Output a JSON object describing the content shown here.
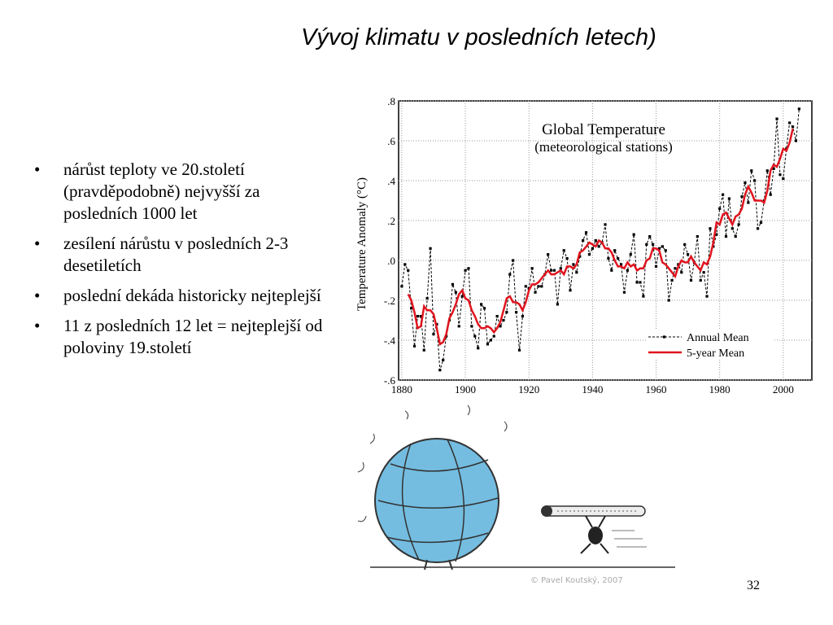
{
  "slide": {
    "title": "Vývoj klimatu v posledních letech)",
    "bullets": [
      "nárůst teploty ve 20.století (pravděpodobně) nejvyšší za posledních 1000 let",
      "zesílení nárůstu v posledních 2-3 desetiletích",
      "poslední dekáda historicky nejteplejší",
      "11 z posledních 12 let  = nejteplejší od poloviny 19.století"
    ],
    "credit": "© Pavel Koutský, 2007",
    "page_number": "32"
  },
  "chart_data": {
    "type": "line",
    "title": "Global Temperature",
    "subtitle": "(meteorological stations)",
    "y_label": "Temperature Anomaly (°C)",
    "xlim": [
      1879,
      2009
    ],
    "xticks": [
      1880,
      1900,
      1920,
      1940,
      1960,
      1980,
      2000
    ],
    "ylim": [
      -0.6,
      0.8
    ],
    "yticks": [
      {
        "value": 0.8,
        "label": ".8"
      },
      {
        "value": 0.6,
        "label": ".6"
      },
      {
        "value": 0.4,
        "label": ".4"
      },
      {
        "value": 0.2,
        "label": ".2"
      },
      {
        "value": 0,
        "label": ".0"
      },
      {
        "value": -0.2,
        "label": "-.2"
      },
      {
        "value": -0.4,
        "label": "-.4"
      },
      {
        "value": -0.6,
        "label": "-.6"
      }
    ],
    "grid": true,
    "legend": "lower right",
    "x": [
      1880,
      1881,
      1882,
      1883,
      1884,
      1885,
      1886,
      1887,
      1888,
      1889,
      1890,
      1891,
      1892,
      1893,
      1894,
      1895,
      1896,
      1897,
      1898,
      1899,
      1900,
      1901,
      1902,
      1903,
      1904,
      1905,
      1906,
      1907,
      1908,
      1909,
      1910,
      1911,
      1912,
      1913,
      1914,
      1915,
      1916,
      1917,
      1918,
      1919,
      1920,
      1921,
      1922,
      1923,
      1924,
      1925,
      1926,
      1927,
      1928,
      1929,
      1930,
      1931,
      1932,
      1933,
      1934,
      1935,
      1936,
      1937,
      1938,
      1939,
      1940,
      1941,
      1942,
      1943,
      1944,
      1945,
      1946,
      1947,
      1948,
      1949,
      1950,
      1951,
      1952,
      1953,
      1954,
      1955,
      1956,
      1957,
      1958,
      1959,
      1960,
      1961,
      1962,
      1963,
      1964,
      1965,
      1966,
      1967,
      1968,
      1969,
      1970,
      1971,
      1972,
      1973,
      1974,
      1975,
      1976,
      1977,
      1978,
      1979,
      1980,
      1981,
      1982,
      1983,
      1984,
      1985,
      1986,
      1987,
      1988,
      1989,
      1990,
      1991,
      1992,
      1993,
      1994,
      1995,
      1996,
      1997,
      1998,
      1999,
      2000,
      2001,
      2002,
      2003,
      2004,
      2005
    ],
    "series": [
      {
        "name": "Annual Mean",
        "color": "#000000",
        "style": "dashed",
        "marker": "square",
        "values": [
          -0.13,
          -0.02,
          -0.05,
          -0.24,
          -0.43,
          -0.28,
          -0.28,
          -0.45,
          -0.19,
          0.06,
          -0.37,
          -0.32,
          -0.55,
          -0.5,
          -0.38,
          -0.3,
          -0.12,
          -0.16,
          -0.33,
          -0.18,
          -0.05,
          -0.04,
          -0.33,
          -0.38,
          -0.44,
          -0.22,
          -0.24,
          -0.42,
          -0.4,
          -0.38,
          -0.28,
          -0.33,
          -0.3,
          -0.26,
          -0.07,
          0,
          -0.26,
          -0.45,
          -0.28,
          -0.13,
          -0.14,
          -0.04,
          -0.16,
          -0.13,
          -0.13,
          -0.07,
          0.03,
          -0.05,
          -0.05,
          -0.22,
          -0.04,
          0.05,
          0.01,
          -0.15,
          -0.02,
          -0.06,
          0.02,
          0.1,
          0.14,
          0.03,
          0.06,
          0.1,
          0.07,
          0.09,
          0.18,
          0.01,
          -0.05,
          0.05,
          0.01,
          -0.02,
          -0.16,
          -0.05,
          0.03,
          0.13,
          -0.11,
          -0.11,
          -0.18,
          0.08,
          0.12,
          0.08,
          -0.03,
          0.06,
          0.07,
          0.05,
          -0.2,
          -0.1,
          -0.04,
          -0.02,
          -0.06,
          0.08,
          0.03,
          -0.1,
          -0.01,
          0.12,
          -0.1,
          -0.06,
          -0.18,
          0.16,
          0.07,
          0.13,
          0.26,
          0.33,
          0.12,
          0.31,
          0.16,
          0.12,
          0.18,
          0.32,
          0.39,
          0.29,
          0.45,
          0.4,
          0.16,
          0.19,
          0.3,
          0.45,
          0.33,
          0.46,
          0.71,
          0.43,
          0.41,
          0.56,
          0.69,
          0.67,
          0.6,
          0.76
        ]
      },
      {
        "name": "5-year Mean",
        "color": "#e0141e",
        "style": "solid",
        "values": [
          null,
          null,
          -0.17,
          -0.2,
          -0.26,
          -0.34,
          -0.33,
          -0.23,
          -0.25,
          -0.25,
          -0.27,
          -0.34,
          -0.42,
          -0.41,
          -0.37,
          -0.29,
          -0.26,
          -0.22,
          -0.17,
          -0.15,
          -0.19,
          -0.2,
          -0.25,
          -0.28,
          -0.32,
          -0.34,
          -0.34,
          -0.33,
          -0.34,
          -0.36,
          -0.34,
          -0.31,
          -0.25,
          -0.19,
          -0.18,
          -0.21,
          -0.21,
          -0.22,
          -0.25,
          -0.21,
          -0.15,
          -0.12,
          -0.12,
          -0.11,
          -0.09,
          -0.07,
          -0.05,
          -0.07,
          -0.07,
          -0.06,
          -0.05,
          -0.07,
          -0.03,
          -0.03,
          -0.04,
          -0.02,
          0.04,
          0.05,
          0.07,
          0.09,
          0.08,
          0.07,
          0.1,
          0.09,
          0.06,
          0.06,
          0.04,
          0,
          -0.03,
          -0.03,
          -0.04,
          -0.01,
          -0.03,
          -0.02,
          -0.05,
          -0.04,
          -0.04,
          0,
          0.01,
          0.06,
          0.06,
          0.05,
          -0.01,
          -0.02,
          -0.04,
          -0.06,
          -0.08,
          -0.03,
          0,
          -0.01,
          -0.01,
          0.02,
          -0.01,
          -0.03,
          -0.05,
          -0.01,
          -0.02,
          0.02,
          0.09,
          0.19,
          0.18,
          0.23,
          0.24,
          0.21,
          0.18,
          0.22,
          0.23,
          0.26,
          0.33,
          0.37,
          0.34,
          0.3,
          0.3,
          0.3,
          0.29,
          0.35,
          0.45,
          0.48,
          0.47,
          0.51,
          0.56,
          0.55,
          0.59,
          0.66,
          null,
          null
        ]
      }
    ]
  }
}
